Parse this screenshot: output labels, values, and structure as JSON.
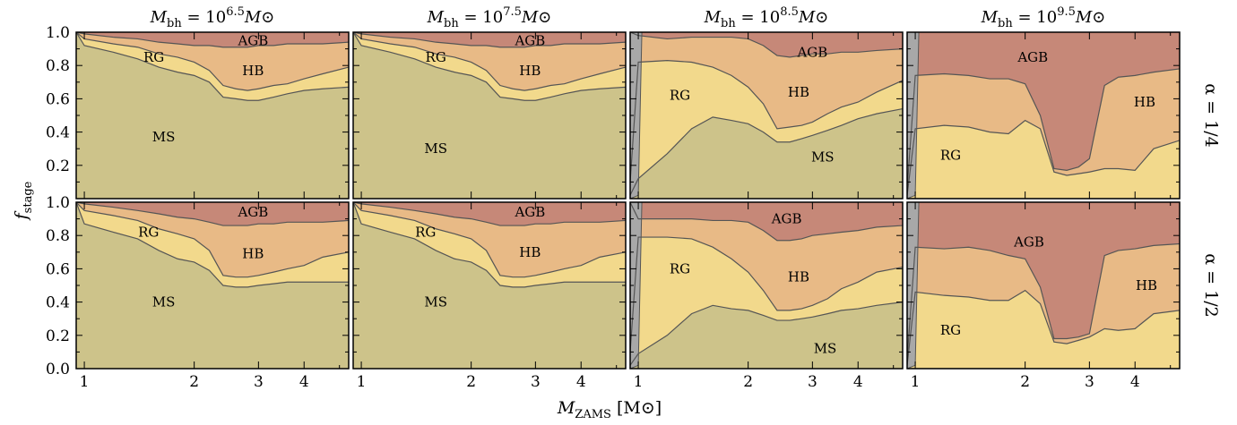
{
  "chart_data": {
    "type": "area",
    "xlabel": "M_ZAMS [M_⊙]",
    "xlabel_main": "M",
    "xlabel_sub": "ZAMS",
    "xlabel_unit": "[M⊙]",
    "ylabel_main": "f",
    "ylabel_sub": "stage",
    "x_scale": "log",
    "xlim": [
      0.95,
      5.3
    ],
    "ylim": [
      0,
      1
    ],
    "x_ticks": [
      {
        "value": 1,
        "label": "1"
      },
      {
        "value": 2,
        "label": "2"
      },
      {
        "value": 3,
        "label": "3"
      },
      {
        "value": 4,
        "label": "4"
      }
    ],
    "y_ticks_top": [
      {
        "value": 0.2,
        "label": "0.2"
      },
      {
        "value": 0.4,
        "label": "0.4"
      },
      {
        "value": 0.6,
        "label": "0.6"
      },
      {
        "value": 0.8,
        "label": "0.8"
      },
      {
        "value": 1.0,
        "label": "1.0"
      }
    ],
    "y_ticks_bottom": [
      {
        "value": 0.0,
        "label": "0.0"
      },
      {
        "value": 0.2,
        "label": "0.2"
      },
      {
        "value": 0.4,
        "label": "0.4"
      },
      {
        "value": 0.6,
        "label": "0.6"
      },
      {
        "value": 0.8,
        "label": "0.8"
      },
      {
        "value": 1.0,
        "label": "1.0"
      }
    ],
    "column_titles": [
      {
        "prefix": "M",
        "sub": "bh",
        "eq": " = 10",
        "exp": "6.5",
        "suffix": "M⊙"
      },
      {
        "prefix": "M",
        "sub": "bh",
        "eq": " = 10",
        "exp": "7.5",
        "suffix": "M⊙"
      },
      {
        "prefix": "M",
        "sub": "bh",
        "eq": " = 10",
        "exp": "8.5",
        "suffix": "M⊙"
      },
      {
        "prefix": "M",
        "sub": "bh",
        "eq": " = 10",
        "exp": "9.5",
        "suffix": "M⊙"
      }
    ],
    "row_labels": [
      "α = 1/4",
      "α = 1/2"
    ],
    "stages": [
      "MS",
      "RG",
      "HB",
      "AGB"
    ],
    "colors": {
      "gray": "#a8a8a8",
      "MS": "#cdc38a",
      "RG": "#f2d98c",
      "HB": "#e8ba86",
      "AGB": "#c68878",
      "line": "#555555"
    },
    "x": [
      0.95,
      1.0,
      1.2,
      1.4,
      1.6,
      1.8,
      2.0,
      2.2,
      2.4,
      2.6,
      2.8,
      3.0,
      3.3,
      3.6,
      4.0,
      4.5,
      5.3
    ],
    "panels": [
      {
        "row": 0,
        "col": 0,
        "cum_MS": [
          1.0,
          0.92,
          0.88,
          0.84,
          0.79,
          0.76,
          0.74,
          0.7,
          0.61,
          0.6,
          0.59,
          0.59,
          0.61,
          0.63,
          0.65,
          0.66,
          0.67
        ],
        "cum_RG": [
          1.0,
          0.96,
          0.93,
          0.91,
          0.87,
          0.85,
          0.82,
          0.77,
          0.68,
          0.66,
          0.65,
          0.66,
          0.68,
          0.69,
          0.72,
          0.75,
          0.79
        ],
        "cum_HB": [
          1.0,
          0.99,
          0.97,
          0.96,
          0.94,
          0.93,
          0.92,
          0.92,
          0.91,
          0.91,
          0.91,
          0.92,
          0.92,
          0.93,
          0.93,
          0.93,
          0.94
        ],
        "labels": [
          {
            "text": "AGB",
            "x": 2.9,
            "y": 0.95
          },
          {
            "text": "HB",
            "x": 2.9,
            "y": 0.77
          },
          {
            "text": "RG",
            "x": 1.55,
            "y": 0.85
          },
          {
            "text": "MS",
            "x": 1.65,
            "y": 0.37
          }
        ]
      },
      {
        "row": 0,
        "col": 1,
        "cum_MS": [
          1.0,
          0.92,
          0.88,
          0.84,
          0.79,
          0.76,
          0.74,
          0.7,
          0.61,
          0.6,
          0.59,
          0.59,
          0.61,
          0.63,
          0.65,
          0.66,
          0.67
        ],
        "cum_RG": [
          1.0,
          0.96,
          0.93,
          0.91,
          0.87,
          0.85,
          0.82,
          0.77,
          0.68,
          0.66,
          0.65,
          0.66,
          0.68,
          0.69,
          0.72,
          0.75,
          0.79
        ],
        "cum_HB": [
          1.0,
          0.99,
          0.97,
          0.96,
          0.94,
          0.93,
          0.92,
          0.92,
          0.91,
          0.91,
          0.91,
          0.92,
          0.92,
          0.93,
          0.93,
          0.93,
          0.94
        ],
        "labels": [
          {
            "text": "AGB",
            "x": 2.9,
            "y": 0.95
          },
          {
            "text": "HB",
            "x": 2.9,
            "y": 0.77
          },
          {
            "text": "RG",
            "x": 1.6,
            "y": 0.85
          },
          {
            "text": "MS",
            "x": 1.6,
            "y": 0.3
          }
        ]
      },
      {
        "row": 0,
        "col": 2,
        "gray_edge": [
          1.0,
          0.02
        ],
        "cum_MS": [
          0.02,
          0.12,
          0.27,
          0.42,
          0.49,
          0.47,
          0.45,
          0.4,
          0.34,
          0.34,
          0.36,
          0.38,
          0.41,
          0.44,
          0.48,
          0.51,
          0.54
        ],
        "cum_RG": [
          0.1,
          0.82,
          0.83,
          0.82,
          0.79,
          0.74,
          0.67,
          0.57,
          0.42,
          0.43,
          0.44,
          0.46,
          0.51,
          0.55,
          0.58,
          0.64,
          0.71
        ],
        "cum_HB": [
          1.0,
          0.98,
          0.96,
          0.97,
          0.97,
          0.97,
          0.96,
          0.92,
          0.86,
          0.85,
          0.86,
          0.87,
          0.87,
          0.88,
          0.88,
          0.89,
          0.9
        ],
        "labels": [
          {
            "text": "AGB",
            "x": 3.0,
            "y": 0.88
          },
          {
            "text": "HB",
            "x": 2.75,
            "y": 0.64
          },
          {
            "text": "RG",
            "x": 1.3,
            "y": 0.62
          },
          {
            "text": "MS",
            "x": 3.2,
            "y": 0.25
          }
        ]
      },
      {
        "row": 0,
        "col": 3,
        "gray_edge": [
          1.0,
          0.02
        ],
        "cum_MS": [
          0.0,
          0.0,
          0.0,
          0.0,
          0.0,
          0.0,
          0.0,
          0.0,
          0.0,
          0.0,
          0.0,
          0.0,
          0.0,
          0.0,
          0.0,
          0.0,
          0.0
        ],
        "cum_RG": [
          0.02,
          0.42,
          0.44,
          0.43,
          0.4,
          0.39,
          0.47,
          0.42,
          0.16,
          0.14,
          0.15,
          0.16,
          0.18,
          0.18,
          0.17,
          0.3,
          0.35
        ],
        "cum_HB": [
          0.06,
          0.74,
          0.75,
          0.74,
          0.72,
          0.72,
          0.69,
          0.5,
          0.18,
          0.17,
          0.19,
          0.24,
          0.68,
          0.73,
          0.74,
          0.76,
          0.78
        ],
        "labels": [
          {
            "text": "AGB",
            "x": 2.1,
            "y": 0.85
          },
          {
            "text": "HB",
            "x": 4.25,
            "y": 0.58
          },
          {
            "text": "RG",
            "x": 1.25,
            "y": 0.26
          }
        ]
      },
      {
        "row": 1,
        "col": 0,
        "cum_MS": [
          1.0,
          0.87,
          0.82,
          0.78,
          0.71,
          0.66,
          0.64,
          0.59,
          0.5,
          0.49,
          0.49,
          0.5,
          0.51,
          0.52,
          0.52,
          0.52,
          0.52
        ],
        "cum_RG": [
          1.0,
          0.95,
          0.92,
          0.89,
          0.84,
          0.81,
          0.78,
          0.71,
          0.56,
          0.55,
          0.55,
          0.56,
          0.58,
          0.6,
          0.62,
          0.67,
          0.7
        ],
        "cum_HB": [
          1.0,
          0.99,
          0.97,
          0.95,
          0.93,
          0.91,
          0.9,
          0.88,
          0.86,
          0.86,
          0.86,
          0.87,
          0.87,
          0.88,
          0.88,
          0.88,
          0.89
        ],
        "labels": [
          {
            "text": "AGB",
            "x": 2.9,
            "y": 0.94
          },
          {
            "text": "HB",
            "x": 2.9,
            "y": 0.69
          },
          {
            "text": "RG",
            "x": 1.5,
            "y": 0.82
          },
          {
            "text": "MS",
            "x": 1.65,
            "y": 0.4
          }
        ]
      },
      {
        "row": 1,
        "col": 1,
        "cum_MS": [
          1.0,
          0.87,
          0.82,
          0.78,
          0.71,
          0.66,
          0.64,
          0.59,
          0.5,
          0.49,
          0.49,
          0.5,
          0.51,
          0.52,
          0.52,
          0.52,
          0.52
        ],
        "cum_RG": [
          1.0,
          0.95,
          0.92,
          0.89,
          0.84,
          0.81,
          0.78,
          0.71,
          0.56,
          0.55,
          0.55,
          0.56,
          0.58,
          0.6,
          0.62,
          0.67,
          0.7
        ],
        "cum_HB": [
          1.0,
          0.99,
          0.97,
          0.95,
          0.93,
          0.91,
          0.9,
          0.88,
          0.86,
          0.86,
          0.86,
          0.87,
          0.87,
          0.88,
          0.88,
          0.88,
          0.89
        ],
        "labels": [
          {
            "text": "AGB",
            "x": 2.9,
            "y": 0.94
          },
          {
            "text": "HB",
            "x": 2.9,
            "y": 0.7
          },
          {
            "text": "RG",
            "x": 1.5,
            "y": 0.82
          },
          {
            "text": "MS",
            "x": 1.6,
            "y": 0.4
          }
        ]
      },
      {
        "row": 1,
        "col": 2,
        "gray_edge": [
          1.0,
          0.02
        ],
        "cum_MS": [
          0.02,
          0.09,
          0.2,
          0.33,
          0.38,
          0.36,
          0.35,
          0.32,
          0.29,
          0.29,
          0.3,
          0.31,
          0.33,
          0.35,
          0.36,
          0.38,
          0.4
        ],
        "cum_RG": [
          0.1,
          0.79,
          0.79,
          0.78,
          0.73,
          0.66,
          0.58,
          0.47,
          0.35,
          0.35,
          0.36,
          0.38,
          0.42,
          0.48,
          0.52,
          0.58,
          0.61
        ],
        "cum_HB": [
          1.0,
          0.9,
          0.9,
          0.9,
          0.89,
          0.89,
          0.88,
          0.83,
          0.77,
          0.77,
          0.78,
          0.8,
          0.81,
          0.82,
          0.83,
          0.85,
          0.86
        ],
        "labels": [
          {
            "text": "AGB",
            "x": 2.55,
            "y": 0.9
          },
          {
            "text": "HB",
            "x": 2.75,
            "y": 0.55
          },
          {
            "text": "RG",
            "x": 1.3,
            "y": 0.6
          },
          {
            "text": "MS",
            "x": 3.25,
            "y": 0.12
          }
        ]
      },
      {
        "row": 1,
        "col": 3,
        "gray_edge": [
          1.0,
          0.02
        ],
        "cum_MS": [
          0.0,
          0.0,
          0.0,
          0.0,
          0.0,
          0.0,
          0.0,
          0.0,
          0.0,
          0.0,
          0.0,
          0.0,
          0.0,
          0.0,
          0.0,
          0.0,
          0.0
        ],
        "cum_RG": [
          0.02,
          0.46,
          0.44,
          0.43,
          0.41,
          0.41,
          0.47,
          0.39,
          0.16,
          0.15,
          0.17,
          0.19,
          0.24,
          0.23,
          0.24,
          0.33,
          0.35
        ],
        "cum_HB": [
          0.06,
          0.73,
          0.72,
          0.73,
          0.71,
          0.68,
          0.66,
          0.49,
          0.18,
          0.18,
          0.19,
          0.21,
          0.68,
          0.71,
          0.72,
          0.74,
          0.75
        ],
        "labels": [
          {
            "text": "AGB",
            "x": 2.05,
            "y": 0.76
          },
          {
            "text": "HB",
            "x": 4.3,
            "y": 0.5
          },
          {
            "text": "RG",
            "x": 1.25,
            "y": 0.23
          }
        ]
      }
    ]
  }
}
